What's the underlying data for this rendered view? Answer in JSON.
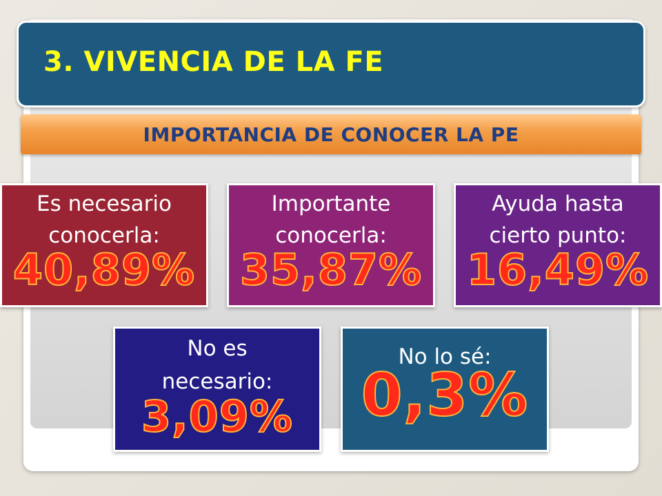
{
  "title": "3. VIVENCIA DE LA FE",
  "subtitle": "IMPORTANCIA DE CONOCER LA PE",
  "boxes": [
    {
      "label_line1": "Es necesario",
      "label_line2": "conocerla:",
      "value": "40,89%",
      "color": "#9a2433"
    },
    {
      "label_line1": "Importante",
      "label_line2": "conocerla:",
      "value": "35,87%",
      "color": "#8f2477"
    },
    {
      "label_line1": "Ayuda hasta",
      "label_line2": "cierto punto:",
      "value": "16,49%",
      "color": "#6a2387"
    },
    {
      "label_line1": "No es",
      "label_line2": "necesario:",
      "value": "3,09%",
      "color": "#231c84"
    },
    {
      "label_line1": "No lo sé:",
      "value": "0,3%",
      "color": "#1e5a80"
    }
  ],
  "colors": {
    "title_bar": "#1e5a80",
    "title_text": "#ffff1a",
    "subtitle_bar": "#f4a04a",
    "subtitle_text": "#1f3d80",
    "value_text": "#ff2a1a"
  }
}
